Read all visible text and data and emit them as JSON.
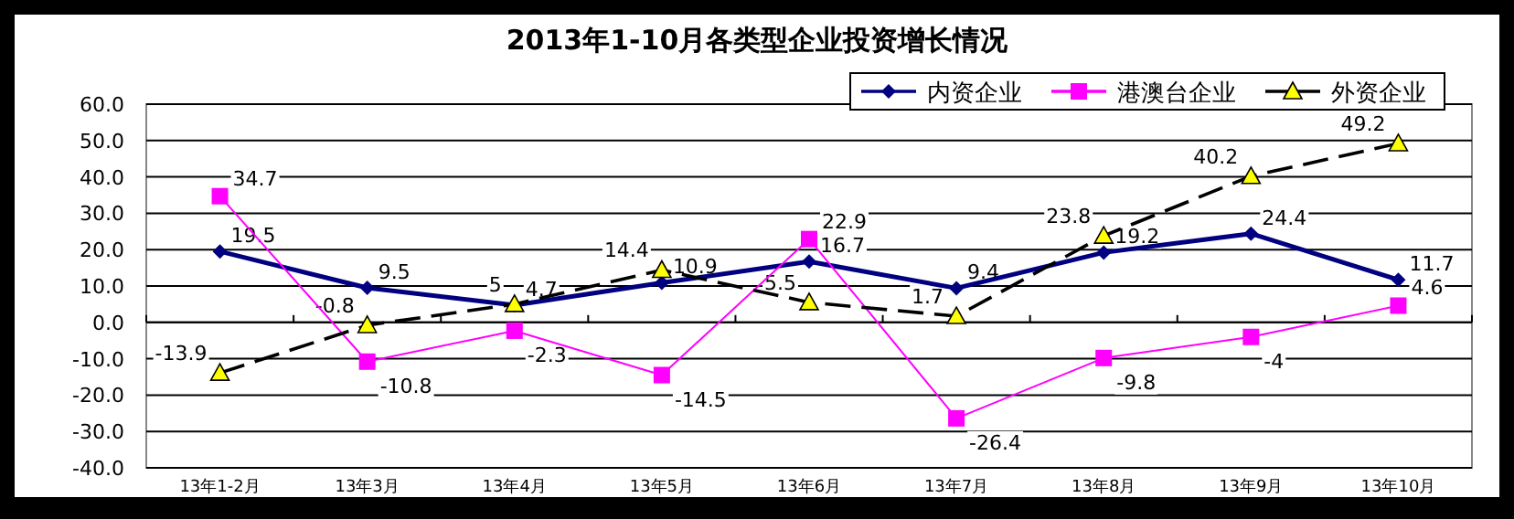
{
  "chart_data": {
    "type": "line",
    "title": "2013年1-10月各类型企业投资增长情况",
    "categories": [
      "13年1-2月",
      "13年3月",
      "13年4月",
      "13年5月",
      "13年6月",
      "13年7月",
      "13年8月",
      "13年9月",
      "13年10月"
    ],
    "series": [
      {
        "name": "内资企业",
        "color": "#000080",
        "marker": "diamond",
        "line_style": "solid",
        "values": [
          19.5,
          9.5,
          4.7,
          10.9,
          16.7,
          9.4,
          19.2,
          24.4,
          11.7
        ],
        "value_labels": [
          "19.5",
          "9.5",
          "4.7",
          "10.9",
          "16.7",
          "9.4",
          "19.2",
          "24.4",
          "11.7"
        ]
      },
      {
        "name": "港澳台企业",
        "color": "#ff00ff",
        "marker": "square",
        "line_style": "solid",
        "values": [
          34.7,
          -10.8,
          -2.3,
          -14.5,
          22.9,
          -26.4,
          -9.8,
          -4,
          4.6
        ],
        "value_labels": [
          "34.7",
          "-10.8",
          "-2.3",
          "-14.5",
          "22.9",
          "-26.4",
          "-9.8",
          "-4",
          "4.6"
        ]
      },
      {
        "name": "外资企业",
        "color": "#000000",
        "marker": "triangle",
        "line_style": "dashed",
        "values": [
          -13.9,
          -0.8,
          5,
          14.4,
          5.5,
          1.7,
          23.8,
          40.2,
          49.2
        ],
        "value_labels": [
          "-13.9",
          "-0.8",
          "5",
          "14.4",
          "5.5",
          "1.7",
          "23.8",
          "40.2",
          "49.2"
        ]
      }
    ],
    "ylim": [
      -40,
      60
    ],
    "yticks": [
      {
        "value": -40,
        "label": "-40.0"
      },
      {
        "value": -30,
        "label": "-30.0"
      },
      {
        "value": -20,
        "label": "-20.0"
      },
      {
        "value": -10,
        "label": "-10.0"
      },
      {
        "value": 0,
        "label": "0.0"
      },
      {
        "value": 10,
        "label": "10.0"
      },
      {
        "value": 20,
        "label": "20.0"
      },
      {
        "value": 30,
        "label": "30.0"
      },
      {
        "value": 40,
        "label": "40.0"
      },
      {
        "value": 50,
        "label": "50.0"
      },
      {
        "value": 60,
        "label": "60.0"
      }
    ],
    "grid": "y",
    "legend": "top right"
  }
}
